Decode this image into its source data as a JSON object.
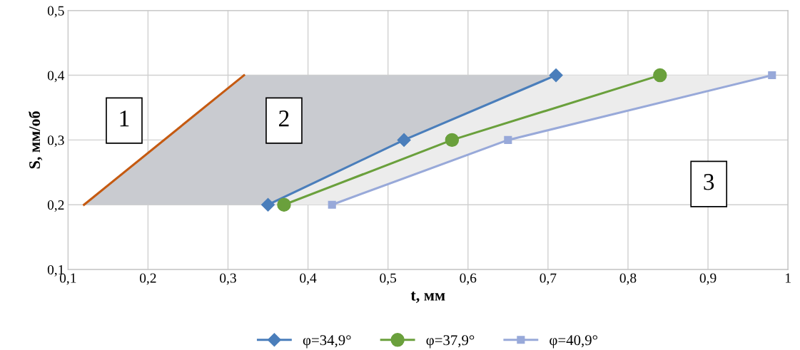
{
  "chart_data": {
    "type": "line",
    "xlabel": "t, мм",
    "ylabel": "S, мм/об",
    "xlim": [
      0.1,
      1
    ],
    "xticks": [
      {
        "value": 0.1,
        "label": "0,1"
      },
      {
        "value": 0.2,
        "label": "0,2"
      },
      {
        "value": 0.3,
        "label": "0,3"
      },
      {
        "value": 0.4,
        "label": "0,4"
      },
      {
        "value": 0.5,
        "label": "0,5"
      },
      {
        "value": 0.6,
        "label": "0,6"
      },
      {
        "value": 0.7,
        "label": "0,7"
      },
      {
        "value": 0.8,
        "label": "0,8"
      },
      {
        "value": 0.9,
        "label": "0,9"
      },
      {
        "value": 1,
        "label": "1"
      }
    ],
    "ylim": [
      0.1,
      0.5
    ],
    "yticks": [
      {
        "value": 0.1,
        "label": "0,1"
      },
      {
        "value": 0.2,
        "label": "0,2"
      },
      {
        "value": 0.3,
        "label": "0,3"
      },
      {
        "value": 0.4,
        "label": "0,4"
      },
      {
        "value": 0.5,
        "label": "0,5"
      }
    ],
    "grid": true,
    "legend": "bottom",
    "series": [
      {
        "color": "#c55a11",
        "marker": "none",
        "x": [
          0.12,
          0.32
        ],
        "values": [
          0.2,
          0.4
        ]
      },
      {
        "name": "φ=34,9°",
        "color": "#4a7ebb",
        "marker": "diamond",
        "x": [
          0.35,
          0.52,
          0.71
        ],
        "values": [
          0.2,
          0.3,
          0.4
        ]
      },
      {
        "name": "φ=37,9°",
        "color": "#6aa03c",
        "marker": "circle",
        "x": [
          0.37,
          0.58,
          0.84
        ],
        "values": [
          0.2,
          0.3,
          0.4
        ]
      },
      {
        "name": "φ=40,9°",
        "color": "#98a9d9",
        "marker": "square",
        "x": [
          0.43,
          0.65,
          0.98
        ],
        "values": [
          0.2,
          0.3,
          0.4
        ]
      }
    ],
    "annotations": [
      "1",
      "2",
      "3"
    ]
  }
}
